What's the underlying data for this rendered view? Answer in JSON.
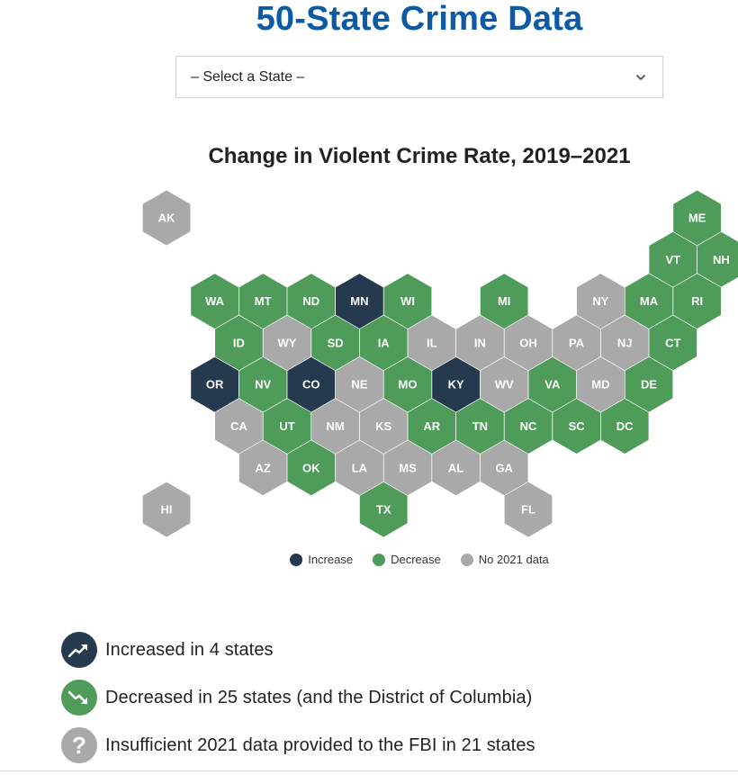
{
  "page_title": "50-State Crime Data",
  "state_select": {
    "value": "– Select a State –"
  },
  "map": {
    "title": "Change in Violent Crime Rate, 2019–2021",
    "colors": {
      "increase": "#253a4f",
      "decrease": "#4f9c5a",
      "no_data": "#a9a9a9"
    },
    "states": [
      {
        "abbr": "AK",
        "status": "no_data",
        "row": 0,
        "col": 0
      },
      {
        "abbr": "ME",
        "status": "decrease",
        "row": 0,
        "col": 11
      },
      {
        "abbr": "VT",
        "status": "decrease",
        "row": 1,
        "col": 10
      },
      {
        "abbr": "NH",
        "status": "decrease",
        "row": 1,
        "col": 11
      },
      {
        "abbr": "WA",
        "status": "decrease",
        "row": 2,
        "col": 1
      },
      {
        "abbr": "MT",
        "status": "decrease",
        "row": 2,
        "col": 2
      },
      {
        "abbr": "ND",
        "status": "decrease",
        "row": 2,
        "col": 3
      },
      {
        "abbr": "MN",
        "status": "increase",
        "row": 2,
        "col": 4
      },
      {
        "abbr": "WI",
        "status": "decrease",
        "row": 2,
        "col": 5
      },
      {
        "abbr": "MI",
        "status": "decrease",
        "row": 2,
        "col": 7
      },
      {
        "abbr": "NY",
        "status": "no_data",
        "row": 2,
        "col": 9
      },
      {
        "abbr": "MA",
        "status": "decrease",
        "row": 2,
        "col": 10
      },
      {
        "abbr": "RI",
        "status": "decrease",
        "row": 2,
        "col": 11
      },
      {
        "abbr": "ID",
        "status": "decrease",
        "row": 3,
        "col": 1
      },
      {
        "abbr": "WY",
        "status": "no_data",
        "row": 3,
        "col": 2
      },
      {
        "abbr": "SD",
        "status": "decrease",
        "row": 3,
        "col": 3
      },
      {
        "abbr": "IA",
        "status": "decrease",
        "row": 3,
        "col": 4
      },
      {
        "abbr": "IL",
        "status": "no_data",
        "row": 3,
        "col": 5
      },
      {
        "abbr": "IN",
        "status": "no_data",
        "row": 3,
        "col": 6
      },
      {
        "abbr": "OH",
        "status": "no_data",
        "row": 3,
        "col": 7
      },
      {
        "abbr": "PA",
        "status": "no_data",
        "row": 3,
        "col": 8
      },
      {
        "abbr": "NJ",
        "status": "no_data",
        "row": 3,
        "col": 9
      },
      {
        "abbr": "CT",
        "status": "decrease",
        "row": 3,
        "col": 10
      },
      {
        "abbr": "OR",
        "status": "increase",
        "row": 4,
        "col": 1
      },
      {
        "abbr": "NV",
        "status": "decrease",
        "row": 4,
        "col": 2
      },
      {
        "abbr": "CO",
        "status": "increase",
        "row": 4,
        "col": 3
      },
      {
        "abbr": "NE",
        "status": "no_data",
        "row": 4,
        "col": 4
      },
      {
        "abbr": "MO",
        "status": "decrease",
        "row": 4,
        "col": 5
      },
      {
        "abbr": "KY",
        "status": "increase",
        "row": 4,
        "col": 6
      },
      {
        "abbr": "WV",
        "status": "no_data",
        "row": 4,
        "col": 7
      },
      {
        "abbr": "VA",
        "status": "decrease",
        "row": 4,
        "col": 8
      },
      {
        "abbr": "MD",
        "status": "no_data",
        "row": 4,
        "col": 9
      },
      {
        "abbr": "DE",
        "status": "decrease",
        "row": 4,
        "col": 10
      },
      {
        "abbr": "CA",
        "status": "no_data",
        "row": 5,
        "col": 1
      },
      {
        "abbr": "UT",
        "status": "decrease",
        "row": 5,
        "col": 2
      },
      {
        "abbr": "NM",
        "status": "no_data",
        "row": 5,
        "col": 3
      },
      {
        "abbr": "KS",
        "status": "no_data",
        "row": 5,
        "col": 4
      },
      {
        "abbr": "AR",
        "status": "decrease",
        "row": 5,
        "col": 5
      },
      {
        "abbr": "TN",
        "status": "decrease",
        "row": 5,
        "col": 6
      },
      {
        "abbr": "NC",
        "status": "decrease",
        "row": 5,
        "col": 7
      },
      {
        "abbr": "SC",
        "status": "decrease",
        "row": 5,
        "col": 8
      },
      {
        "abbr": "DC",
        "status": "decrease",
        "row": 5,
        "col": 9
      },
      {
        "abbr": "AZ",
        "status": "no_data",
        "row": 6,
        "col": 2
      },
      {
        "abbr": "OK",
        "status": "decrease",
        "row": 6,
        "col": 3
      },
      {
        "abbr": "LA",
        "status": "no_data",
        "row": 6,
        "col": 4
      },
      {
        "abbr": "MS",
        "status": "no_data",
        "row": 6,
        "col": 5
      },
      {
        "abbr": "AL",
        "status": "no_data",
        "row": 6,
        "col": 6
      },
      {
        "abbr": "GA",
        "status": "no_data",
        "row": 6,
        "col": 7
      },
      {
        "abbr": "HI",
        "status": "no_data",
        "row": 7,
        "col": 0
      },
      {
        "abbr": "TX",
        "status": "decrease",
        "row": 7,
        "col": 4
      },
      {
        "abbr": "FL",
        "status": "no_data",
        "row": 7,
        "col": 7
      }
    ]
  },
  "legend": [
    {
      "label": "Increase",
      "color": "#253a4f"
    },
    {
      "label": "Decrease",
      "color": "#4f9c5a"
    },
    {
      "label": "No 2021 data",
      "color": "#a9a9a9"
    }
  ],
  "summary": [
    {
      "icon": "trend-up-icon",
      "color": "#253a4f",
      "label": "Increased in 4 states"
    },
    {
      "icon": "trend-down-icon",
      "color": "#4f9c5a",
      "label": "Decreased in 25 states (and the District of Columbia)"
    },
    {
      "icon": "question-icon",
      "color": "#a9a9a9",
      "label": "Insufficient 2021 data provided to the FBI in 21 states"
    }
  ]
}
